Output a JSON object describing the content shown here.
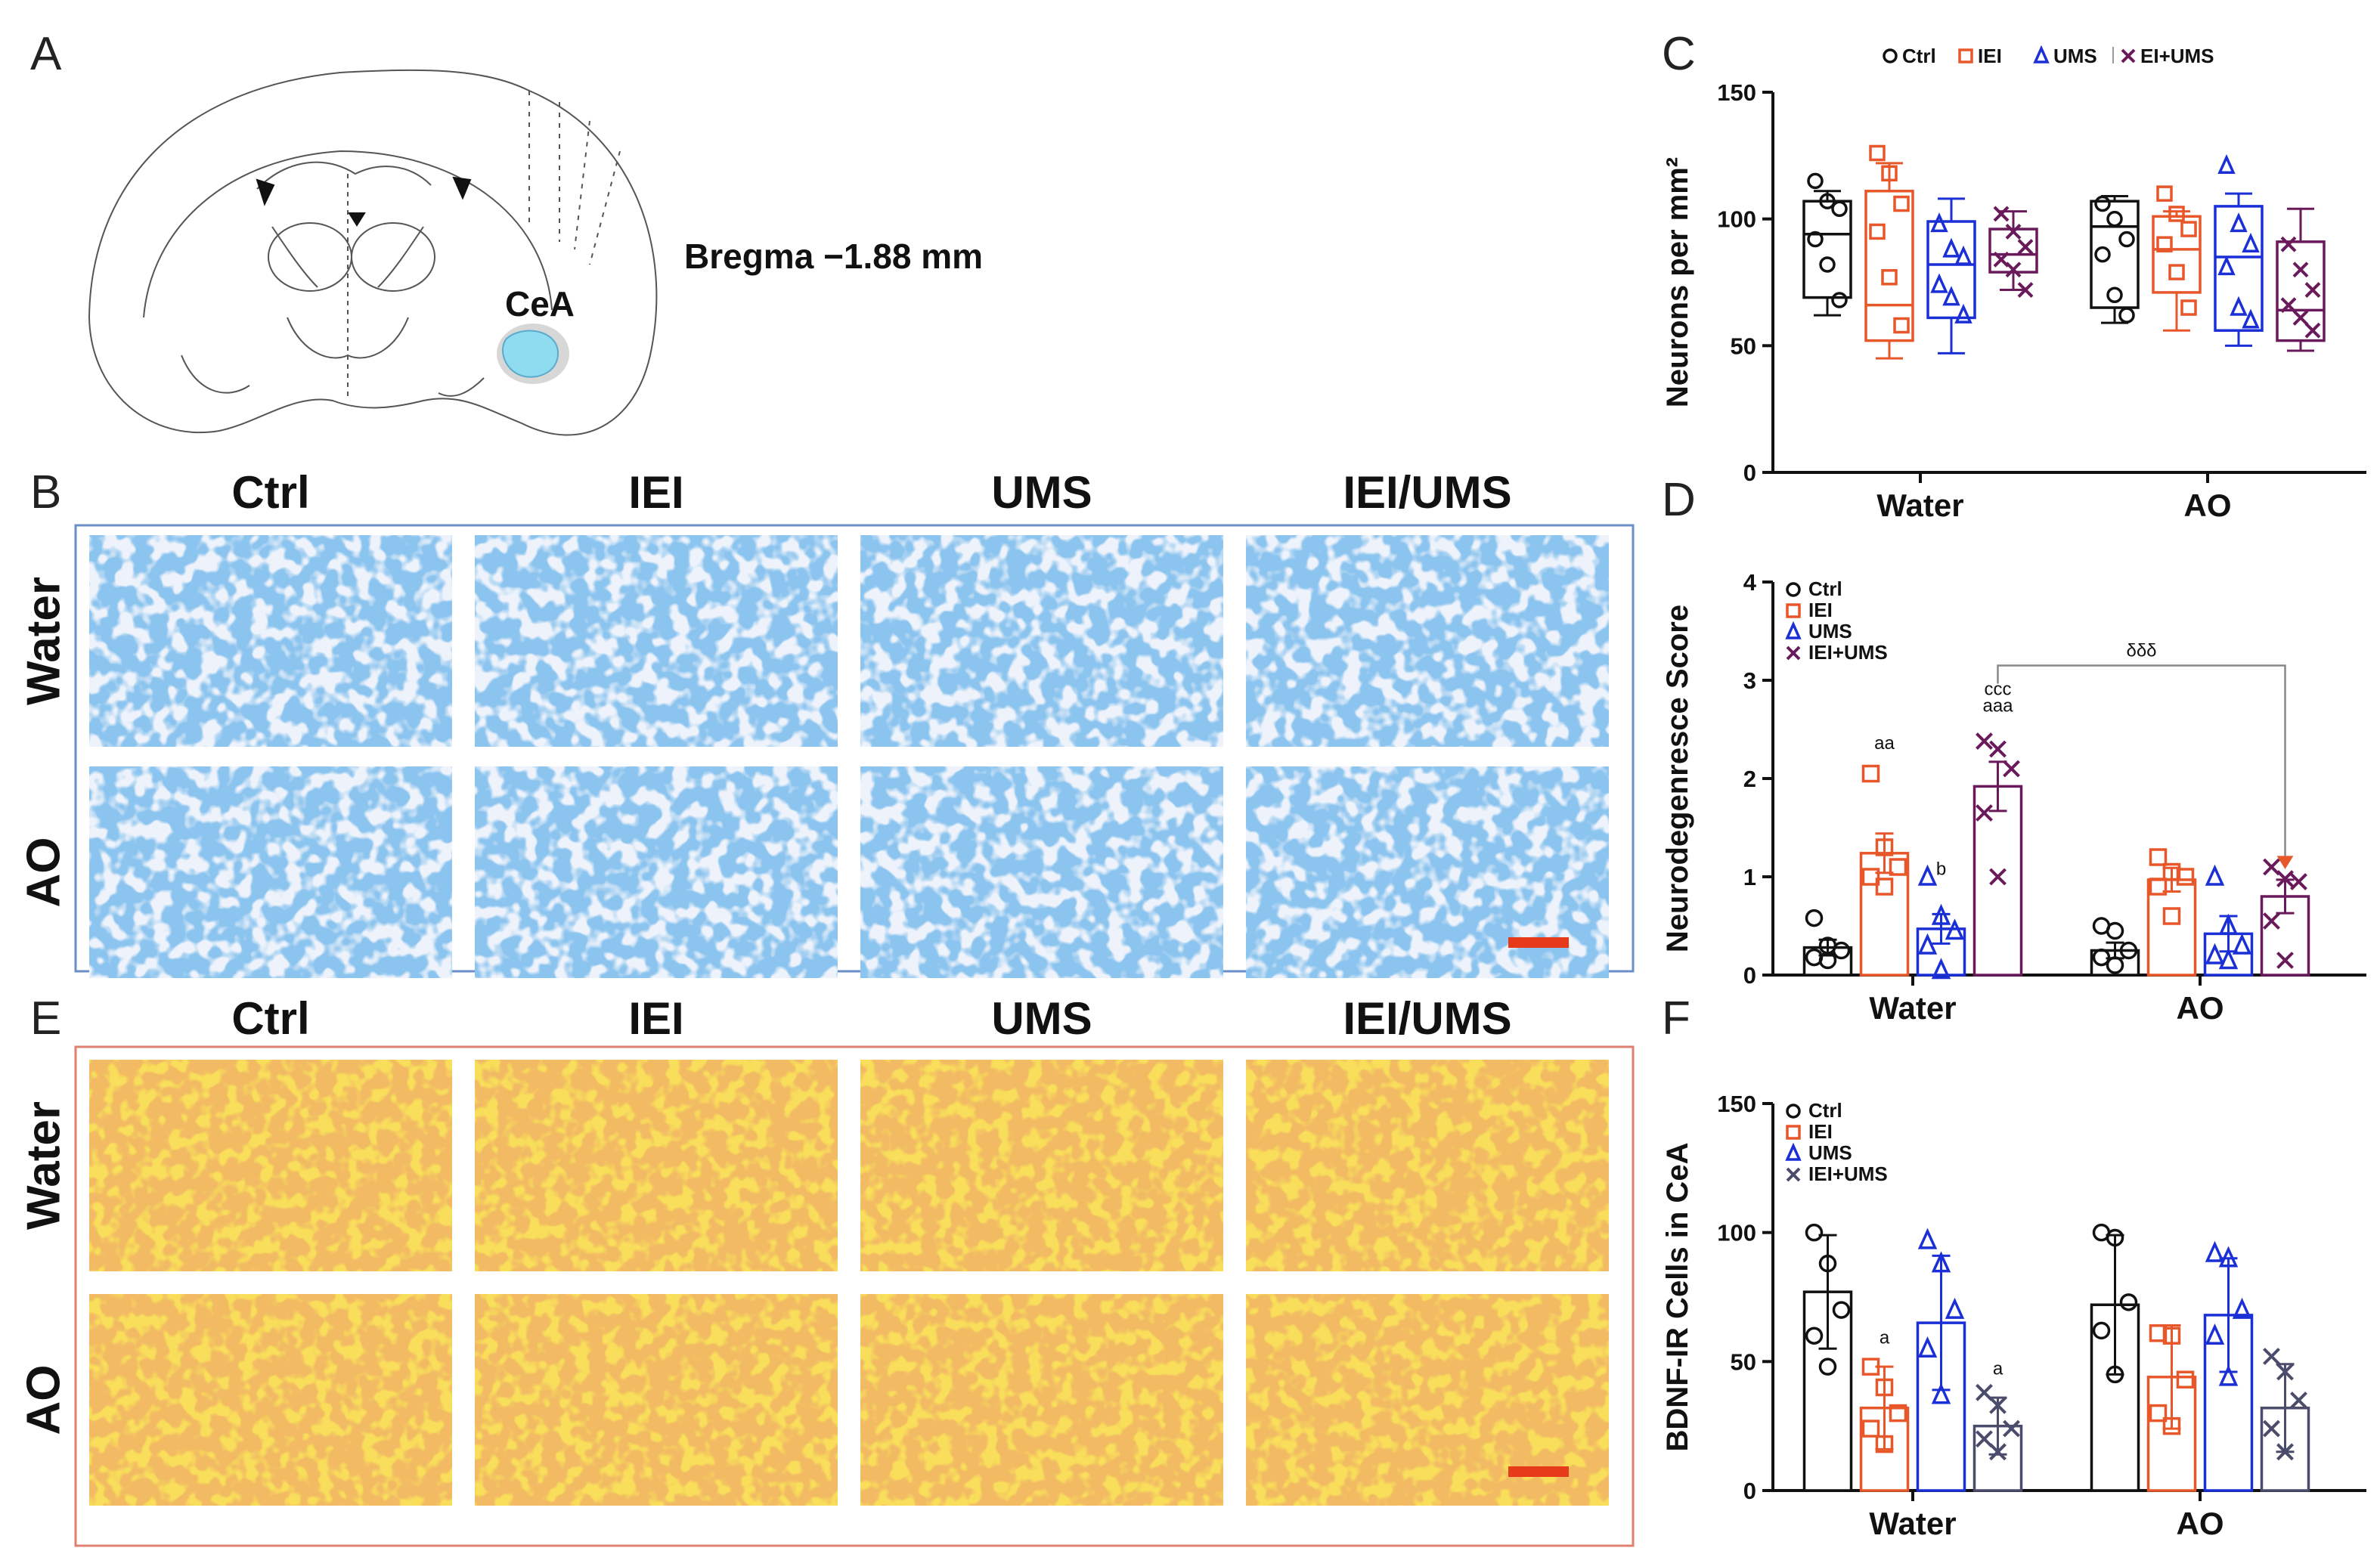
{
  "panels": {
    "A": {
      "label": "A",
      "region_label": "CeA",
      "bregma_label": "Bregma −1.88 mm",
      "highlight_color": "#8fdcf0"
    },
    "B": {
      "label": "B",
      "columns": [
        "Ctrl",
        "IEI",
        "UMS",
        "IEI/UMS"
      ],
      "rows": [
        "Water",
        "AO"
      ],
      "frame_color": "#6a8fc8",
      "stain_color": "#3f86d6",
      "scale_bar_color": "#e63a1a"
    },
    "E": {
      "label": "E",
      "columns": [
        "Ctrl",
        "IEI",
        "UMS",
        "IEI/UMS"
      ],
      "rows": [
        "Water",
        "AO"
      ],
      "frame_color": "#e08070",
      "stain_color": "#f2c230",
      "scale_bar_color": "#e63a1a"
    },
    "C": {
      "label": "C"
    },
    "D": {
      "label": "D"
    },
    "F": {
      "label": "F"
    }
  },
  "chart_data": [
    {
      "panel": "C",
      "type": "box",
      "title": "",
      "ylabel": "Neurons per mm²",
      "ylim": [
        0,
        150
      ],
      "yticks": [
        0,
        50,
        100,
        150
      ],
      "categories": [
        "Water",
        "AO"
      ],
      "legend": [
        "Ctrl",
        "IEI",
        "UMS",
        "EI+UMS"
      ],
      "legend_position": "top",
      "series": [
        {
          "name": "Ctrl",
          "color": "#111111",
          "marker": "circle",
          "boxes": [
            {
              "group": "Water",
              "min": 62,
              "q1": 69,
              "median": 94,
              "q3": 107,
              "max": 111,
              "points": [
                115,
                107,
                104,
                92,
                82,
                68
              ]
            },
            {
              "group": "AO",
              "min": 59,
              "q1": 65,
              "median": 97,
              "q3": 107,
              "max": 109,
              "points": [
                106,
                100,
                92,
                86,
                70,
                62
              ]
            }
          ]
        },
        {
          "name": "IEI",
          "color": "#e8572a",
          "marker": "square",
          "boxes": [
            {
              "group": "Water",
              "min": 45,
              "q1": 52,
              "median": 66,
              "q3": 111,
              "max": 122,
              "points": [
                126,
                118,
                106,
                95,
                77,
                58
              ]
            },
            {
              "group": "AO",
              "min": 56,
              "q1": 71,
              "median": 88,
              "q3": 101,
              "max": 103,
              "points": [
                110,
                102,
                96,
                90,
                79,
                65
              ]
            }
          ]
        },
        {
          "name": "UMS",
          "color": "#1a2fd6",
          "marker": "triangle",
          "boxes": [
            {
              "group": "Water",
              "min": 47,
              "q1": 61,
              "median": 82,
              "q3": 99,
              "max": 108,
              "points": [
                98,
                88,
                85,
                74,
                69,
                62
              ]
            },
            {
              "group": "AO",
              "min": 50,
              "q1": 56,
              "median": 85,
              "q3": 105,
              "max": 110,
              "points": [
                121,
                98,
                90,
                81,
                65,
                60
              ]
            }
          ]
        },
        {
          "name": "EI+UMS",
          "color": "#6a1a5a",
          "marker": "x",
          "boxes": [
            {
              "group": "Water",
              "min": 72,
              "q1": 79,
              "median": 86,
              "q3": 96,
              "max": 103,
              "points": [
                102,
                95,
                89,
                84,
                80,
                72
              ]
            },
            {
              "group": "AO",
              "min": 48,
              "q1": 52,
              "median": 64,
              "q3": 91,
              "max": 104,
              "points": [
                90,
                80,
                72,
                66,
                61,
                56
              ]
            }
          ]
        }
      ]
    },
    {
      "panel": "D",
      "type": "bar",
      "title": "",
      "ylabel": "Neurodegenresce Score",
      "ylim": [
        0,
        4
      ],
      "yticks": [
        0,
        1,
        2,
        3,
        4
      ],
      "categories": [
        "Water",
        "AO"
      ],
      "legend": [
        "Ctrl",
        "IEI",
        "UMS",
        "IEI+UMS"
      ],
      "legend_position": "top-left",
      "series": [
        {
          "name": "Ctrl",
          "color": "#111111",
          "marker": "circle",
          "values": [
            0.28,
            0.25
          ],
          "errors": [
            0.08,
            0.08
          ],
          "points": [
            [
              0.58,
              0.3,
              0.25,
              0.18,
              0.15
            ],
            [
              0.5,
              0.45,
              0.25,
              0.18,
              0.1
            ]
          ]
        },
        {
          "name": "IEI",
          "color": "#e8572a",
          "marker": "square",
          "values": [
            1.24,
            0.97
          ],
          "errors": [
            0.2,
            0.12
          ],
          "points": [
            [
              2.05,
              1.3,
              1.1,
              1.0,
              0.9
            ],
            [
              1.2,
              1.05,
              1.0,
              0.9,
              0.6
            ]
          ]
        },
        {
          "name": "UMS",
          "color": "#1a2fd6",
          "marker": "triangle",
          "values": [
            0.47,
            0.42
          ],
          "errors": [
            0.15,
            0.18
          ],
          "points": [
            [
              1.0,
              0.6,
              0.45,
              0.3,
              0.05
            ],
            [
              1.0,
              0.5,
              0.3,
              0.2,
              0.15
            ]
          ]
        },
        {
          "name": "IEI+UMS",
          "color": "#6a1a5a",
          "marker": "x",
          "values": [
            1.92,
            0.8
          ],
          "errors": [
            0.25,
            0.17
          ],
          "points": [
            [
              2.38,
              2.3,
              2.1,
              1.65,
              1.0
            ],
            [
              1.1,
              0.98,
              0.95,
              0.55,
              0.15
            ]
          ]
        }
      ],
      "annotations": [
        {
          "text": "aa",
          "group": "Water",
          "series": "IEI",
          "y": 2.3
        },
        {
          "text": "b",
          "group": "Water",
          "series": "UMS",
          "y": 1.02
        },
        {
          "text": "ccc",
          "group": "Water",
          "series": "IEI+UMS",
          "y": 2.85
        },
        {
          "text": "aaa",
          "group": "Water",
          "series": "IEI+UMS",
          "y": 2.68
        }
      ],
      "bracket": {
        "text": "δδδ",
        "y": 3.15,
        "color": "#e8572a"
      }
    },
    {
      "panel": "F",
      "type": "bar",
      "title": "",
      "ylabel": "BDNF-IR Cells in CeA",
      "ylim": [
        0,
        150
      ],
      "yticks": [
        0,
        50,
        100,
        150
      ],
      "categories": [
        "Water",
        "AO"
      ],
      "legend": [
        "Ctrl",
        "IEI",
        "UMS",
        "IEI+UMS"
      ],
      "legend_position": "top-left",
      "series": [
        {
          "name": "Ctrl",
          "color": "#111111",
          "marker": "circle",
          "values": [
            77,
            72
          ],
          "errors": [
            22,
            27
          ],
          "points": [
            [
              100,
              88,
              70,
              60,
              48
            ],
            [
              100,
              98,
              73,
              62,
              45
            ]
          ]
        },
        {
          "name": "IEI",
          "color": "#e8572a",
          "marker": "square",
          "values": [
            32,
            44
          ],
          "errors": [
            16,
            20
          ],
          "points": [
            [
              48,
              40,
              30,
              24,
              18
            ],
            [
              61,
              60,
              43,
              30,
              25
            ]
          ]
        },
        {
          "name": "UMS",
          "color": "#1a2fd6",
          "marker": "triangle",
          "values": [
            65,
            68
          ],
          "errors": [
            26,
            22
          ],
          "points": [
            [
              97,
              88,
              70,
              55,
              37
            ],
            [
              92,
              90,
              70,
              60,
              44
            ]
          ]
        },
        {
          "name": "IEI+UMS",
          "color": "#4b4b6b",
          "marker": "x",
          "values": [
            25,
            32
          ],
          "errors": [
            11,
            17
          ],
          "points": [
            [
              38,
              33,
              24,
              20,
              15
            ],
            [
              52,
              46,
              35,
              24,
              15
            ]
          ]
        }
      ],
      "annotations": [
        {
          "text": "a",
          "group": "Water",
          "series": "IEI",
          "y": 57
        },
        {
          "text": "a",
          "group": "Water",
          "series": "IEI+UMS",
          "y": 45
        }
      ]
    }
  ]
}
